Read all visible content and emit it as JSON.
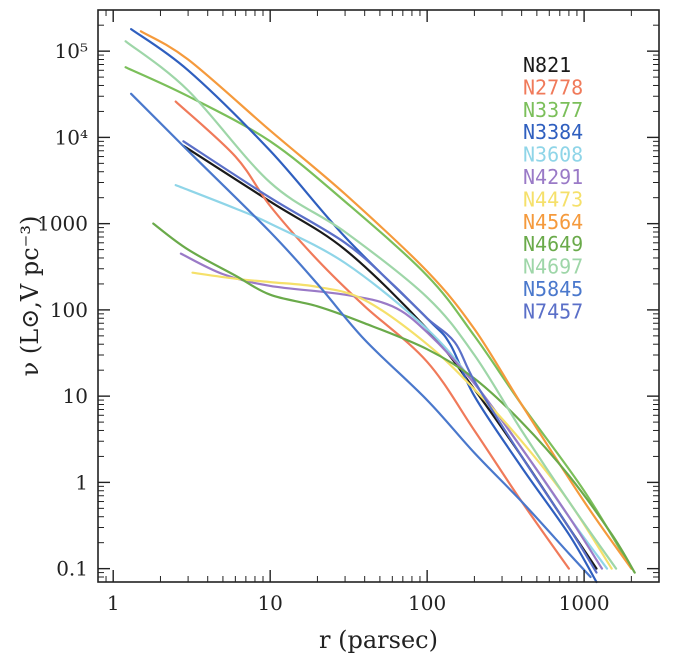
{
  "chart_data": {
    "type": "line",
    "xlabel": "r (parsec)",
    "ylabel": "ν (L⊙,V pc⁻³)",
    "x_scale": "log",
    "y_scale": "log",
    "xlim": [
      0.8,
      3000
    ],
    "ylim": [
      0.07,
      300000
    ],
    "x_ticks": [
      {
        "value": 1,
        "label": "1"
      },
      {
        "value": 10,
        "label": "10"
      },
      {
        "value": 100,
        "label": "100"
      },
      {
        "value": 1000,
        "label": "1000"
      }
    ],
    "y_ticks": [
      {
        "value": 0.1,
        "label": "0.1"
      },
      {
        "value": 1,
        "label": "1"
      },
      {
        "value": 10,
        "label": "10"
      },
      {
        "value": 100,
        "label": "100"
      },
      {
        "value": 1000,
        "label": "1000"
      },
      {
        "value": 10000,
        "label": "10⁴"
      },
      {
        "value": 100000,
        "label": "10⁵"
      }
    ],
    "legend_position": "top-right",
    "grid": false,
    "series": [
      {
        "name": "N821",
        "color": "#1a1a1a",
        "points": [
          [
            2.8,
            8000
          ],
          [
            10,
            1800
          ],
          [
            30,
            500
          ],
          [
            100,
            60
          ],
          [
            200,
            12
          ],
          [
            400,
            2
          ],
          [
            800,
            0.3
          ],
          [
            1200,
            0.1
          ]
        ]
      },
      {
        "name": "N2778",
        "color": "#f07a5a",
        "points": [
          [
            2.5,
            26000
          ],
          [
            6,
            6000
          ],
          [
            10,
            1600
          ],
          [
            20,
            380
          ],
          [
            40,
            110
          ],
          [
            100,
            25
          ],
          [
            200,
            4
          ],
          [
            400,
            0.6
          ],
          [
            800,
            0.1
          ]
        ]
      },
      {
        "name": "N3377",
        "color": "#7bbf5a",
        "points": [
          [
            1.2,
            65000
          ],
          [
            3,
            30000
          ],
          [
            10,
            9000
          ],
          [
            30,
            1800
          ],
          [
            100,
            250
          ],
          [
            200,
            50
          ],
          [
            400,
            8
          ],
          [
            1000,
            0.8
          ],
          [
            2000,
            0.1
          ]
        ]
      },
      {
        "name": "N3384",
        "color": "#2f5fbf",
        "points": [
          [
            1.3,
            180000
          ],
          [
            3,
            60000
          ],
          [
            10,
            7000
          ],
          [
            30,
            700
          ],
          [
            100,
            80
          ],
          [
            140,
            40
          ],
          [
            200,
            10
          ],
          [
            400,
            1.5
          ],
          [
            800,
            0.25
          ],
          [
            1200,
            0.07
          ]
        ]
      },
      {
        "name": "N3608",
        "color": "#8fd5e8",
        "points": [
          [
            2.5,
            2800
          ],
          [
            6,
            1500
          ],
          [
            10,
            1000
          ],
          [
            30,
            350
          ],
          [
            100,
            60
          ],
          [
            200,
            14
          ],
          [
            400,
            2.5
          ],
          [
            800,
            0.4
          ],
          [
            1400,
            0.1
          ]
        ]
      },
      {
        "name": "N4291",
        "color": "#9a7ac7",
        "points": [
          [
            2.7,
            450
          ],
          [
            5,
            260
          ],
          [
            10,
            190
          ],
          [
            30,
            150
          ],
          [
            60,
            110
          ],
          [
            100,
            55
          ],
          [
            200,
            14
          ],
          [
            400,
            2.5
          ],
          [
            800,
            0.4
          ],
          [
            1300,
            0.1
          ]
        ]
      },
      {
        "name": "N4473",
        "color": "#f5e06a",
        "points": [
          [
            3.2,
            270
          ],
          [
            6,
            230
          ],
          [
            10,
            210
          ],
          [
            20,
            185
          ],
          [
            40,
            130
          ],
          [
            100,
            40
          ],
          [
            200,
            12
          ],
          [
            400,
            3
          ],
          [
            800,
            0.6
          ],
          [
            1500,
            0.1
          ]
        ]
      },
      {
        "name": "N4564",
        "color": "#f59a3c",
        "points": [
          [
            1.5,
            170000
          ],
          [
            3,
            80000
          ],
          [
            10,
            12000
          ],
          [
            30,
            2200
          ],
          [
            100,
            280
          ],
          [
            200,
            60
          ],
          [
            400,
            8
          ],
          [
            1000,
            0.6
          ],
          [
            2000,
            0.1
          ]
        ]
      },
      {
        "name": "N4649",
        "color": "#6aaa4a",
        "points": [
          [
            1.8,
            1000
          ],
          [
            3,
            500
          ],
          [
            6,
            250
          ],
          [
            10,
            150
          ],
          [
            20,
            110
          ],
          [
            40,
            70
          ],
          [
            100,
            35
          ],
          [
            200,
            16
          ],
          [
            400,
            5
          ],
          [
            800,
            1.2
          ],
          [
            1500,
            0.25
          ],
          [
            2100,
            0.09
          ]
        ]
      },
      {
        "name": "N4697",
        "color": "#9ed6a8",
        "points": [
          [
            1.2,
            130000
          ],
          [
            3,
            35000
          ],
          [
            10,
            3000
          ],
          [
            30,
            800
          ],
          [
            100,
            140
          ],
          [
            200,
            30
          ],
          [
            400,
            4
          ],
          [
            800,
            0.6
          ],
          [
            1600,
            0.1
          ]
        ]
      },
      {
        "name": "N5845",
        "color": "#4a78cc",
        "points": [
          [
            1.3,
            32000
          ],
          [
            3,
            7000
          ],
          [
            10,
            800
          ],
          [
            20,
            200
          ],
          [
            40,
            45
          ],
          [
            100,
            9
          ],
          [
            200,
            2.2
          ],
          [
            400,
            0.6
          ],
          [
            800,
            0.15
          ],
          [
            1100,
            0.08
          ]
        ]
      },
      {
        "name": "N7457",
        "color": "#5a6fc8",
        "points": [
          [
            2.8,
            9000
          ],
          [
            10,
            2000
          ],
          [
            30,
            600
          ],
          [
            60,
            200
          ],
          [
            100,
            80
          ],
          [
            150,
            42
          ],
          [
            200,
            15
          ],
          [
            400,
            2
          ],
          [
            800,
            0.3
          ],
          [
            1200,
            0.09
          ]
        ]
      }
    ]
  }
}
